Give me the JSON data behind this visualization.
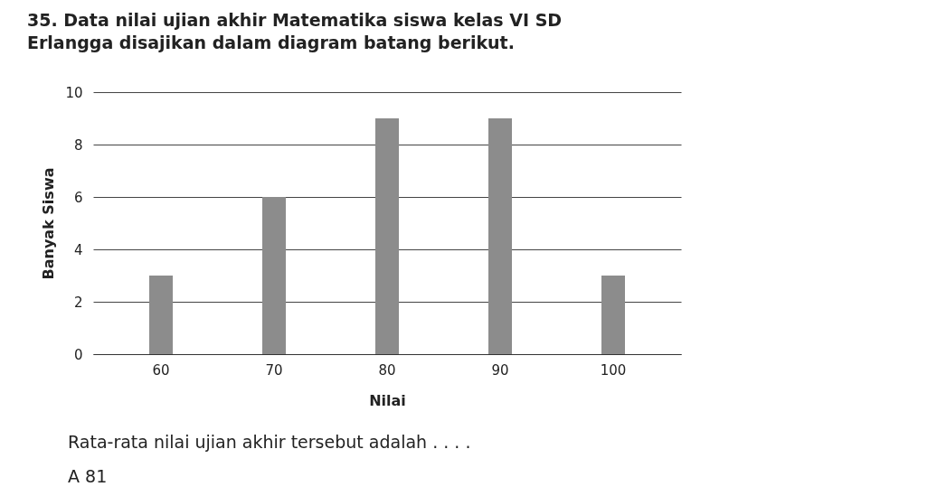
{
  "chart_data": {
    "type": "bar",
    "title": "35. Data nilai ujian akhir Matematika siswa kelas VI SD Erlangga disajikan dalam diagram batang berikut.",
    "xlabel": "Nilai",
    "ylabel": "Banyak Siswa",
    "categories": [
      "60",
      "70",
      "80",
      "90",
      "100"
    ],
    "values": [
      3,
      6,
      9,
      9,
      3
    ],
    "color": "#8c8c8c",
    "ylim": [
      0,
      10
    ],
    "yticks": [
      0,
      2,
      4,
      6,
      8,
      10
    ],
    "grid": "y",
    "annotations": [
      "Rata-rata nilai ujian akhir tersebut adalah . . . .",
      "A   81"
    ]
  }
}
